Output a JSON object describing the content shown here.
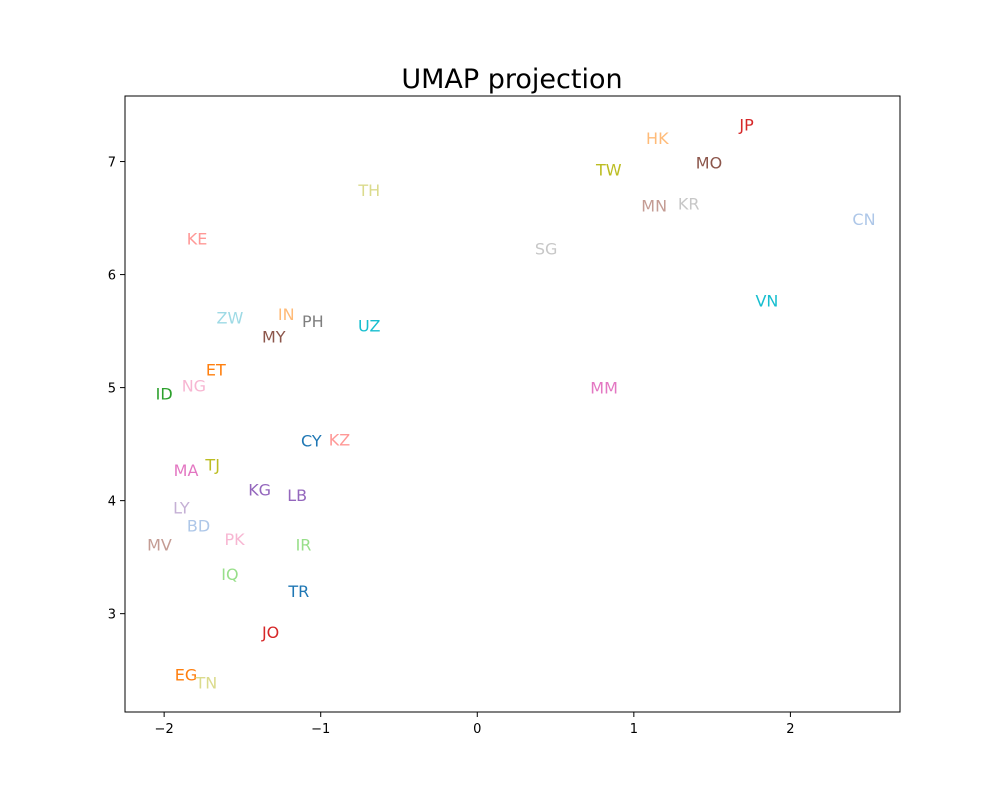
{
  "chart_data": {
    "type": "scatter",
    "title": "UMAP projection",
    "xlabel": "",
    "ylabel": "",
    "xlim": [
      -2.25,
      2.7
    ],
    "ylim": [
      2.13,
      7.58
    ],
    "xticks": [
      -2,
      -1,
      0,
      1,
      2
    ],
    "xtick_labels": [
      "−2",
      "−1",
      "0",
      "1",
      "2"
    ],
    "yticks": [
      3,
      4,
      5,
      6,
      7
    ],
    "ytick_labels": [
      "3",
      "4",
      "5",
      "6",
      "7"
    ],
    "grid": false,
    "points": [
      {
        "label": "JP",
        "x": 1.72,
        "y": 7.33,
        "color": "#d62728"
      },
      {
        "label": "HK",
        "x": 1.15,
        "y": 7.21,
        "color": "#ffbb78"
      },
      {
        "label": "MO",
        "x": 1.48,
        "y": 6.99,
        "color": "#8c564b"
      },
      {
        "label": "TW",
        "x": 0.84,
        "y": 6.93,
        "color": "#bcbd22"
      },
      {
        "label": "TH",
        "x": -0.69,
        "y": 6.75,
        "color": "#dbdb8d"
      },
      {
        "label": "MN",
        "x": 1.13,
        "y": 6.61,
        "color": "#c49c94"
      },
      {
        "label": "KR",
        "x": 1.35,
        "y": 6.63,
        "color": "#c7c7c7"
      },
      {
        "label": "CN",
        "x": 2.47,
        "y": 6.49,
        "color": "#aec7e8"
      },
      {
        "label": "KE",
        "x": -1.79,
        "y": 6.32,
        "color": "#ff9896"
      },
      {
        "label": "SG",
        "x": 0.44,
        "y": 6.23,
        "color": "#c7c7c7"
      },
      {
        "label": "VN",
        "x": 1.85,
        "y": 5.77,
        "color": "#17becf"
      },
      {
        "label": "ZW",
        "x": -1.58,
        "y": 5.62,
        "color": "#9edae5"
      },
      {
        "label": "IN",
        "x": -1.22,
        "y": 5.65,
        "color": "#ffbb78"
      },
      {
        "label": "PH",
        "x": -1.05,
        "y": 5.59,
        "color": "#7f7f7f"
      },
      {
        "label": "UZ",
        "x": -0.69,
        "y": 5.55,
        "color": "#17becf"
      },
      {
        "label": "MY",
        "x": -1.3,
        "y": 5.45,
        "color": "#8c564b"
      },
      {
        "label": "ET",
        "x": -1.67,
        "y": 5.16,
        "color": "#ff7f0e"
      },
      {
        "label": "NG",
        "x": -1.81,
        "y": 5.02,
        "color": "#f7b6d2"
      },
      {
        "label": "ID",
        "x": -2.0,
        "y": 4.95,
        "color": "#2ca02c"
      },
      {
        "label": "MM",
        "x": 0.81,
        "y": 5.0,
        "color": "#e377c2"
      },
      {
        "label": "CY",
        "x": -1.06,
        "y": 4.53,
        "color": "#1f77b4"
      },
      {
        "label": "KZ",
        "x": -0.88,
        "y": 4.54,
        "color": "#ff9896"
      },
      {
        "label": "MA",
        "x": -1.86,
        "y": 4.27,
        "color": "#e377c2"
      },
      {
        "label": "TJ",
        "x": -1.69,
        "y": 4.32,
        "color": "#bcbd22"
      },
      {
        "label": "KG",
        "x": -1.39,
        "y": 4.1,
        "color": "#9467bd"
      },
      {
        "label": "LB",
        "x": -1.15,
        "y": 4.05,
        "color": "#9467bd"
      },
      {
        "label": "LY",
        "x": -1.89,
        "y": 3.94,
        "color": "#c5b0d5"
      },
      {
        "label": "BD",
        "x": -1.78,
        "y": 3.78,
        "color": "#aec7e8"
      },
      {
        "label": "PK",
        "x": -1.55,
        "y": 3.66,
        "color": "#f7b6d2"
      },
      {
        "label": "MV",
        "x": -2.03,
        "y": 3.61,
        "color": "#c49c94"
      },
      {
        "label": "IR",
        "x": -1.11,
        "y": 3.61,
        "color": "#98df8a"
      },
      {
        "label": "IQ",
        "x": -1.58,
        "y": 3.35,
        "color": "#98df8a"
      },
      {
        "label": "TR",
        "x": -1.14,
        "y": 3.2,
        "color": "#1f77b4"
      },
      {
        "label": "JO",
        "x": -1.32,
        "y": 2.84,
        "color": "#d62728"
      },
      {
        "label": "EG",
        "x": -1.86,
        "y": 2.46,
        "color": "#ff7f0e"
      },
      {
        "label": "TN",
        "x": -1.73,
        "y": 2.39,
        "color": "#dbdb8d"
      }
    ]
  }
}
